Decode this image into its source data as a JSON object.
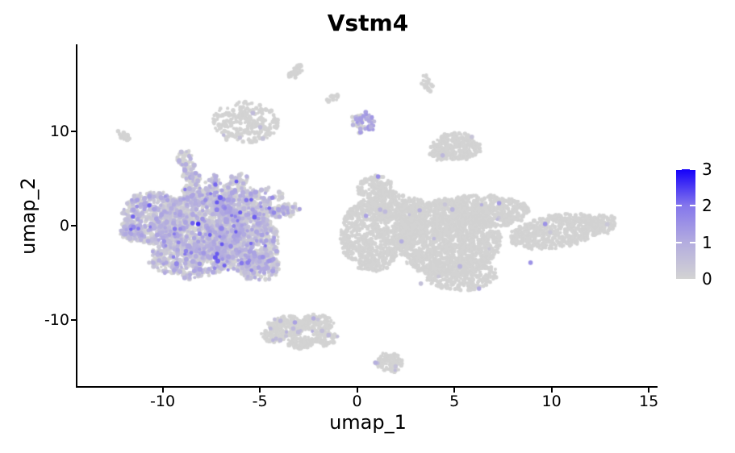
{
  "chart_data": {
    "type": "scatter",
    "title": "Vstm4",
    "xlabel": "umap_1",
    "ylabel": "umap_2",
    "xlim": [
      -14.4,
      15.45
    ],
    "ylim": [
      -17.1,
      19.22
    ],
    "xtick_labels": [
      "-10",
      "-5",
      "0",
      "5",
      "10",
      "15"
    ],
    "xtick_values": [
      -10,
      -5,
      0,
      5,
      10,
      15
    ],
    "ytick_labels": [
      "10",
      "0",
      "-10"
    ],
    "ytick_values": [
      10,
      0,
      -10
    ],
    "grid": false,
    "legend": {
      "position": "right",
      "tick_labels": [
        "3",
        "2",
        "1",
        "0"
      ],
      "tick_values": [
        3,
        2,
        1,
        0
      ],
      "vmin": 0,
      "vmax": 3
    },
    "colors": {
      "background": "#ffffff",
      "axis": "#000000",
      "text": "#000000",
      "gradient_low_to_high": [
        "#d3d3d3",
        "#b3acdf",
        "#8577ec",
        "#1400fa"
      ]
    },
    "point_radius": 2.25,
    "clusters": [
      {
        "name": "left-main-cluster",
        "expr": {
          "p0": 0.52,
          "vmin": 0.2,
          "vmax": 1.25,
          "skew": 2.0,
          "p2": 0.018,
          "v2min": 1.4,
          "v2max": 2.3
        },
        "blobs": [
          [
            -10.46,
            0.85,
            1.66,
            2.74,
            0,
            600
          ],
          [
            -7.97,
            0.0,
            2.28,
            3.42,
            0,
            1200
          ],
          [
            -5.89,
            -1.71,
            1.87,
            3.25,
            0,
            800
          ],
          [
            -8.59,
            -3.42,
            2.07,
            2.14,
            0,
            500
          ],
          [
            -5.89,
            2.14,
            1.45,
            1.71,
            0,
            300
          ],
          [
            -11.58,
            -0.68,
            0.58,
            0.85,
            0,
            80
          ],
          [
            -5.06,
            -4.27,
            1.04,
            1.54,
            0,
            220
          ],
          [
            -8.51,
            3.42,
            0.58,
            0.85,
            0,
            70
          ],
          [
            -7.47,
            4.1,
            0.37,
            1.37,
            15,
            60
          ],
          [
            -6.22,
            4.44,
            0.66,
            0.85,
            -35,
            70
          ],
          [
            -3.82,
            1.54,
            0.91,
            0.68,
            -10,
            90
          ],
          [
            -7.14,
            2.56,
            0.83,
            1.2,
            0,
            150
          ],
          [
            -4.9,
            3.2,
            1.2,
            0.9,
            0,
            35
          ]
        ]
      },
      {
        "name": "right-main-cluster",
        "expr": {
          "p0": 0.997,
          "vmin": 0.3,
          "vmax": 1.0,
          "skew": 1.5
        },
        "blobs": [
          [
            0.75,
            -1.03,
            1.58,
            3.85,
            0,
            700
          ],
          [
            0.87,
            4.1,
            0.91,
            1.2,
            0,
            120
          ],
          [
            1.58,
            2.14,
            1.04,
            1.54,
            0,
            200
          ],
          [
            4.69,
            -1.28,
            2.7,
            4.1,
            0,
            1700
          ],
          [
            6.35,
            1.54,
            2.49,
            1.71,
            0,
            500
          ],
          [
            5.31,
            -5.13,
            1.87,
            1.71,
            0,
            350
          ],
          [
            10.29,
            -0.6,
            2.41,
            1.71,
            -9,
            600
          ],
          [
            12.57,
            0.17,
            0.75,
            1.03,
            0,
            90
          ],
          [
            2.82,
            0.85,
            0.83,
            2.14,
            0,
            250
          ]
        ]
      },
      {
        "name": "island-top-left",
        "expr": {
          "p0": 0.993,
          "vmin": 0.3,
          "vmax": 0.7,
          "skew": 1.5
        },
        "blobs": [
          [
            -5.73,
            10.94,
            1.7,
            2.14,
            0,
            260
          ]
        ]
      },
      {
        "name": "speck-far-left",
        "expr": {
          "p0": 1
        },
        "blobs": [
          [
            -11.95,
            9.49,
            0.37,
            0.3,
            40,
            26
          ]
        ]
      },
      {
        "name": "hook-arm",
        "expr": {
          "p0": 0.88,
          "vmin": 0.4,
          "vmax": 1.1,
          "skew": 1.5
        },
        "blobs": [
          [
            -8.88,
            7.18,
            0.33,
            0.85,
            15,
            40
          ],
          [
            -8.67,
            5.81,
            0.29,
            1.03,
            0,
            50
          ],
          [
            -8.38,
            4.96,
            0.33,
            0.6,
            -20,
            35
          ]
        ]
      },
      {
        "name": "speck-top-center",
        "expr": {
          "p0": 1
        },
        "blobs": [
          [
            -3.15,
            16.32,
            0.5,
            0.43,
            -35,
            35
          ]
        ]
      },
      {
        "name": "speck-top-mid",
        "expr": {
          "p0": 1
        },
        "blobs": [
          [
            -1.24,
            13.59,
            0.33,
            0.34,
            -30,
            18
          ]
        ]
      },
      {
        "name": "island-expressing-top",
        "expr": {
          "p0": 0.45,
          "vmin": 0.5,
          "vmax": 1.4,
          "skew": 1.0
        },
        "blobs": [
          [
            -0.04,
            11.2,
            0.25,
            0.51,
            0,
            12
          ],
          [
            0.33,
            11.54,
            0.25,
            0.51,
            0,
            12
          ],
          [
            0.66,
            11.11,
            0.25,
            0.51,
            0,
            12
          ],
          [
            0.17,
            10.34,
            0.25,
            0.51,
            0,
            12
          ],
          [
            0.71,
            10.43,
            0.21,
            0.43,
            0,
            10
          ]
        ]
      },
      {
        "name": "speck-above-right",
        "expr": {
          "p0": 1
        },
        "blobs": [
          [
            3.44,
            15.38,
            0.29,
            0.51,
            0,
            14
          ],
          [
            3.69,
            14.7,
            0.25,
            0.51,
            0,
            14
          ]
        ]
      },
      {
        "name": "island-mid-right",
        "expr": {
          "p0": 0.99,
          "vmin": 0.3,
          "vmax": 0.8,
          "skew": 1.5
        },
        "blobs": [
          [
            5.1,
            8.38,
            1.24,
            1.45,
            0,
            280
          ],
          [
            4.27,
            7.52,
            0.5,
            0.68,
            0,
            60
          ]
        ]
      },
      {
        "name": "island-bottom-center",
        "expr": {
          "p0": 0.975,
          "vmin": 0.3,
          "vmax": 1.0,
          "skew": 1.5
        },
        "blobs": [
          [
            -3.61,
            -10.68,
            0.91,
            1.11,
            0,
            170
          ],
          [
            -2.07,
            -10.34,
            0.83,
            0.94,
            0,
            130
          ],
          [
            -4.31,
            -11.62,
            0.58,
            0.77,
            0,
            70
          ],
          [
            -1.66,
            -11.88,
            0.66,
            0.77,
            0,
            80
          ],
          [
            -2.9,
            -12.39,
            0.75,
            0.68,
            0,
            70
          ]
        ]
      },
      {
        "name": "island-bottom-oval",
        "expr": {
          "p0": 0.985,
          "vmin": 0.3,
          "vmax": 0.9,
          "skew": 1.5
        },
        "blobs": [
          [
            1.66,
            -14.53,
            0.71,
            0.94,
            0,
            110
          ]
        ]
      }
    ],
    "highlight_points": [
      [
        -8.17,
        0.17,
        2.6
      ],
      [
        -8.46,
        0.26,
        2.2
      ],
      [
        1.08,
        5.21,
        1.6
      ],
      [
        0.46,
        1.03,
        1.2
      ],
      [
        4.9,
        1.71,
        0.8
      ],
      [
        7.3,
        2.39,
        1.3
      ],
      [
        9.67,
        0.17,
        1.5
      ],
      [
        8.92,
        -3.93,
        1.5
      ],
      [
        6.27,
        -6.67,
        1.0
      ],
      [
        3.28,
        -6.15,
        0.5
      ],
      [
        -3.2,
        -10.26,
        1.2
      ],
      [
        -3.94,
        -10.09,
        0.7
      ],
      [
        -2.24,
        -9.83,
        1.0
      ],
      [
        0.95,
        -14.53,
        0.9
      ],
      [
        -0.04,
        11.28,
        1.2
      ],
      [
        0.62,
        11.11,
        1.1
      ],
      [
        0.17,
        10.26,
        1.0
      ],
      [
        0.71,
        10.43,
        0.9
      ],
      [
        -0.21,
        10.68,
        0.8
      ],
      [
        0.33,
        11.62,
        1.3
      ],
      [
        -8.3,
        5.56,
        1.1
      ],
      [
        -8.46,
        5.13,
        0.8
      ],
      [
        4.4,
        7.44,
        0.7
      ],
      [
        -4.98,
        10.43,
        0.6
      ]
    ]
  }
}
